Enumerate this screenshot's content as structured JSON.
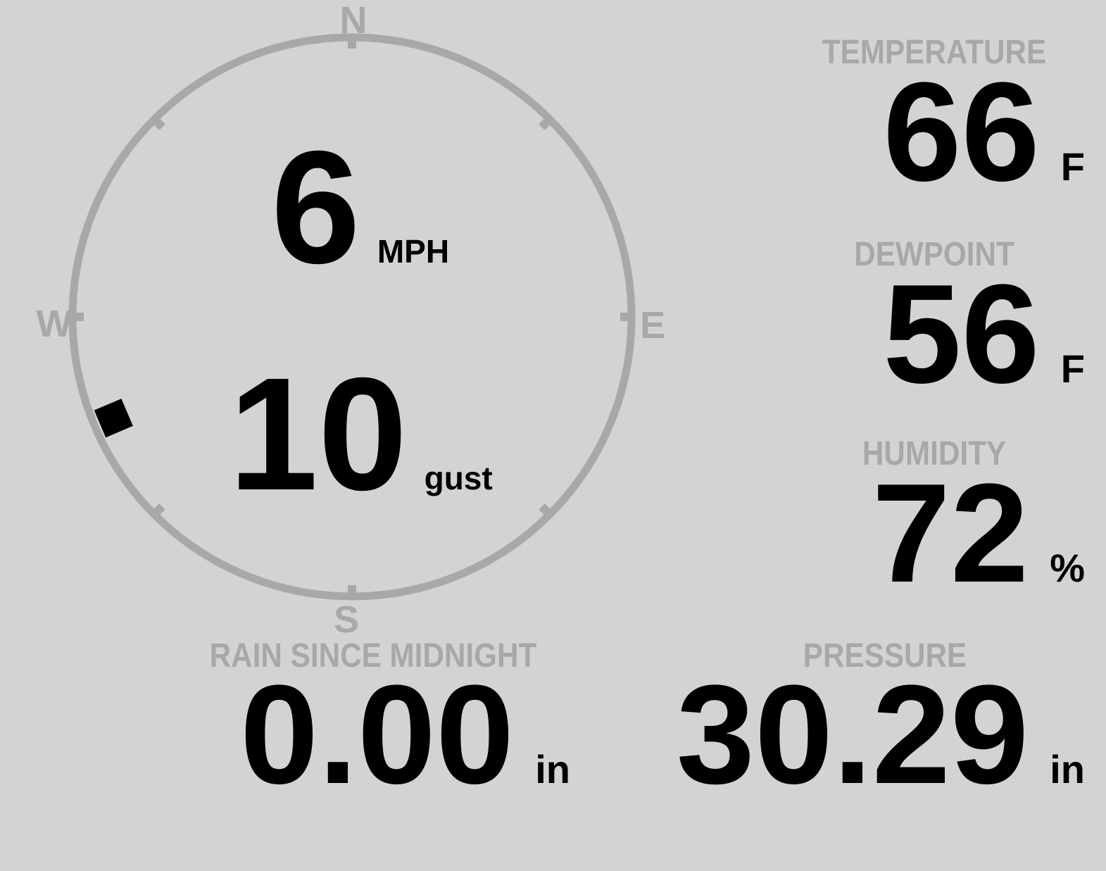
{
  "colors": {
    "background": "#d3d3d3",
    "muted": "#a8a8a8",
    "ink": "#000000"
  },
  "compass": {
    "cardinals": {
      "north": "N",
      "east": "E",
      "south": "S",
      "west": "W"
    },
    "speed": {
      "value": "6",
      "unit": "MPH"
    },
    "gust": {
      "value": "10",
      "unit": "gust"
    },
    "wind_direction_deg": 247
  },
  "metrics": {
    "temperature": {
      "label": "TEMPERATURE",
      "value": "66",
      "unit": "F"
    },
    "dewpoint": {
      "label": "DEWPOINT",
      "value": "56",
      "unit": "F"
    },
    "humidity": {
      "label": "HUMIDITY",
      "value": "72",
      "unit": "%"
    },
    "rain": {
      "label": "RAIN SINCE MIDNIGHT",
      "value": "0.00",
      "unit": "in"
    },
    "pressure": {
      "label": "PRESSURE",
      "value": "30.29",
      "unit": "in"
    }
  }
}
